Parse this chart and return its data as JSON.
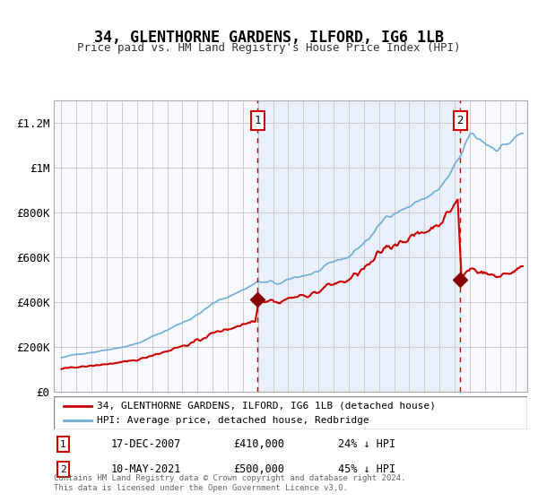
{
  "title": "34, GLENTHORNE GARDENS, ILFORD, IG6 1LB",
  "subtitle": "Price paid vs. HM Land Registry's House Price Index (HPI)",
  "legend_line1": "34, GLENTHORNE GARDENS, ILFORD, IG6 1LB (detached house)",
  "legend_line2": "HPI: Average price, detached house, Redbridge",
  "annotation1_label": "1",
  "annotation1_date": "17-DEC-2007",
  "annotation1_price": "£410,000",
  "annotation1_hpi": "24% ↓ HPI",
  "annotation1_year": 2007.96,
  "annotation1_value": 410000,
  "annotation2_label": "2",
  "annotation2_date": "10-MAY-2021",
  "annotation2_price": "£500,000",
  "annotation2_hpi": "45% ↓ HPI",
  "annotation2_year": 2021.36,
  "annotation2_value": 500000,
  "hpi_color": "#6baed6",
  "price_color": "#cc0000",
  "fill_color": "#ddeeff",
  "background_color": "#f5f5ff",
  "ylabel_color": "#333333",
  "grid_color": "#cccccc",
  "footer": "Contains HM Land Registry data © Crown copyright and database right 2024.\nThis data is licensed under the Open Government Licence v3.0.",
  "ylim": [
    0,
    1300000
  ],
  "yticks": [
    0,
    200000,
    400000,
    600000,
    800000,
    1000000,
    1200000
  ],
  "ytick_labels": [
    "£0",
    "£200K",
    "£400K",
    "£600K",
    "£800K",
    "£1M",
    "£1.2M"
  ]
}
